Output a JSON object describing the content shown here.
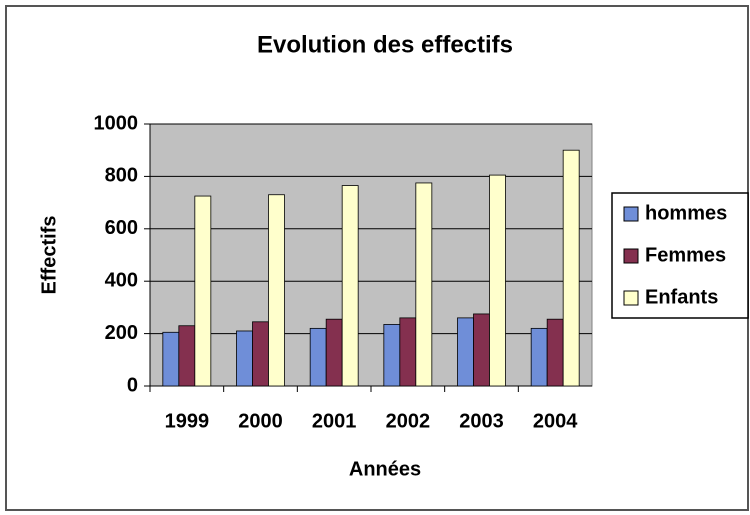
{
  "chart_data": {
    "type": "bar",
    "title": "Evolution des effectifs",
    "x_label": "Années",
    "y_label": "Effectifs",
    "categories": [
      "1999",
      "2000",
      "2001",
      "2002",
      "2003",
      "2004"
    ],
    "series": [
      {
        "name": "hommes",
        "color": "#6f8ed8",
        "values": [
          205,
          210,
          220,
          235,
          260,
          220
        ]
      },
      {
        "name": "Femmes",
        "color": "#84304f",
        "values": [
          230,
          245,
          255,
          260,
          275,
          255
        ]
      },
      {
        "name": "Enfants",
        "color": "#ffffcc",
        "values": [
          725,
          730,
          765,
          775,
          805,
          900
        ]
      }
    ],
    "ylim": [
      0,
      1000
    ],
    "yticks": [
      0,
      200,
      400,
      600,
      800,
      1000
    ],
    "grid": true,
    "legend": "right"
  }
}
